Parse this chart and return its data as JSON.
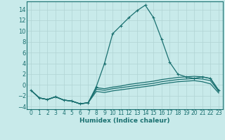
{
  "xlabel": "Humidex (Indice chaleur)",
  "xlim": [
    -0.5,
    23.5
  ],
  "ylim": [
    -4.5,
    15.5
  ],
  "yticks": [
    -4,
    -2,
    0,
    2,
    4,
    6,
    8,
    10,
    12,
    14
  ],
  "xticks": [
    0,
    1,
    2,
    3,
    4,
    5,
    6,
    7,
    8,
    9,
    10,
    11,
    12,
    13,
    14,
    15,
    16,
    17,
    18,
    19,
    20,
    21,
    22,
    23
  ],
  "bg_color": "#c8eaea",
  "line_color": "#1a7070",
  "grid_color": "#b0d4d4",
  "lines": [
    {
      "x": [
        0,
        1,
        2,
        3,
        4,
        5,
        6,
        7,
        8,
        9,
        10,
        11,
        12,
        13,
        14,
        15,
        16,
        17,
        18,
        19,
        20,
        21,
        22,
        23
      ],
      "y": [
        -1.0,
        -2.4,
        -2.7,
        -2.2,
        -2.8,
        -3.0,
        -3.5,
        -3.3,
        -0.3,
        4.0,
        9.5,
        11.0,
        12.5,
        13.8,
        14.8,
        12.5,
        8.5,
        4.2,
        2.0,
        1.5,
        1.2,
        1.5,
        1.2,
        -1.0
      ],
      "marker": "+"
    },
    {
      "x": [
        0,
        1,
        2,
        3,
        4,
        5,
        6,
        7,
        8,
        9,
        10,
        11,
        12,
        13,
        14,
        15,
        16,
        17,
        18,
        19,
        20,
        21,
        22,
        23
      ],
      "y": [
        -1.0,
        -2.4,
        -2.7,
        -2.2,
        -2.8,
        -3.0,
        -3.5,
        -3.3,
        -0.5,
        -0.7,
        -0.4,
        -0.2,
        0.1,
        0.3,
        0.5,
        0.7,
        1.0,
        1.2,
        1.4,
        1.5,
        1.6,
        1.5,
        1.2,
        -1.0
      ],
      "marker": null
    },
    {
      "x": [
        0,
        1,
        2,
        3,
        4,
        5,
        6,
        7,
        8,
        9,
        10,
        11,
        12,
        13,
        14,
        15,
        16,
        17,
        18,
        19,
        20,
        21,
        22,
        23
      ],
      "y": [
        -1.0,
        -2.4,
        -2.7,
        -2.2,
        -2.8,
        -3.0,
        -3.5,
        -3.3,
        -0.8,
        -1.0,
        -0.7,
        -0.5,
        -0.3,
        -0.1,
        0.1,
        0.3,
        0.6,
        0.8,
        1.0,
        1.1,
        1.2,
        1.1,
        0.8,
        -1.2
      ],
      "marker": null
    },
    {
      "x": [
        0,
        1,
        2,
        3,
        4,
        5,
        6,
        7,
        8,
        9,
        10,
        11,
        12,
        13,
        14,
        15,
        16,
        17,
        18,
        19,
        20,
        21,
        22,
        23
      ],
      "y": [
        -1.0,
        -2.4,
        -2.7,
        -2.2,
        -2.8,
        -3.0,
        -3.5,
        -3.3,
        -1.2,
        -1.4,
        -1.1,
        -0.9,
        -0.7,
        -0.5,
        -0.3,
        -0.1,
        0.2,
        0.4,
        0.6,
        0.7,
        0.8,
        0.6,
        0.2,
        -1.5
      ],
      "marker": null
    }
  ]
}
